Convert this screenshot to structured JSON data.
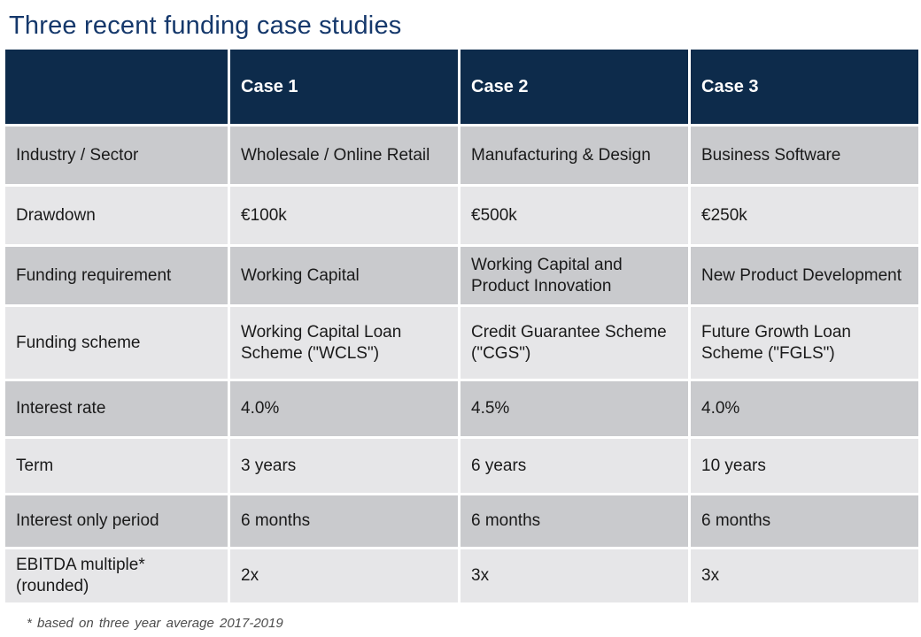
{
  "page": {
    "title": "Three recent funding case studies",
    "footnote": "* based on three year average  2017-2019"
  },
  "colors": {
    "title_navy": "#15386b",
    "header_navy": "#0d2b4b",
    "row_dark_gray": "#c9cacd",
    "row_light_gray": "#e6e6e8",
    "body_text": "#1a1a1a",
    "footnote_gray": "#4d4d4d"
  },
  "table": {
    "columns": [
      "",
      "Case 1",
      "Case 2",
      "Case 3"
    ],
    "rows": [
      {
        "label": "Industry / Sector",
        "values": [
          "Wholesale / Online Retail",
          "Manufacturing & Design",
          "Business Software"
        ]
      },
      {
        "label": "Drawdown",
        "values": [
          "€100k",
          "€500k",
          "€250k"
        ]
      },
      {
        "label": "Funding requirement",
        "values": [
          "Working Capital",
          "Working Capital and Product Innovation",
          "New Product Development"
        ]
      },
      {
        "label": "Funding scheme",
        "values": [
          "Working Capital Loan Scheme (\"WCLS\")",
          "Credit Guarantee Scheme (\"CGS\")",
          "Future Growth Loan Scheme (\"FGLS\")"
        ]
      },
      {
        "label": "Interest rate",
        "values": [
          "4.0%",
          "4.5%",
          "4.0%"
        ]
      },
      {
        "label": "Term",
        "values": [
          "3 years",
          "6 years",
          "10 years"
        ]
      },
      {
        "label": "Interest only period",
        "values": [
          "6 months",
          "6 months",
          "6 months"
        ]
      },
      {
        "label": "EBITDA multiple* (rounded)",
        "values": [
          "2x",
          "3x",
          "3x"
        ]
      }
    ]
  }
}
